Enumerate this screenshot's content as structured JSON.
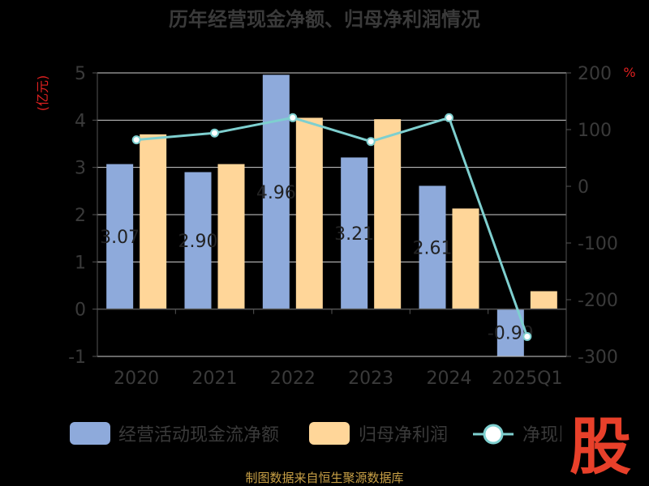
{
  "chart_data": {
    "type": "bar+line",
    "title": "历年经营现金净额、归母净利润情况",
    "categories": [
      "2020",
      "2021",
      "2022",
      "2023",
      "2024",
      "2025Q1"
    ],
    "y_left": {
      "label": "(亿元)",
      "ticks": [
        "5",
        "4",
        "3",
        "2",
        "1",
        "0",
        "-1"
      ],
      "range": [
        -1,
        5
      ]
    },
    "y_right": {
      "label": "%",
      "ticks": [
        "200",
        "100",
        "0",
        "-100",
        "-200",
        "-300"
      ],
      "range": [
        -300,
        200
      ]
    },
    "series": [
      {
        "name": "经营活动现金流净额",
        "type": "bar",
        "axis": "left",
        "color": "#8eaadb",
        "values": [
          3.07,
          2.9,
          4.96,
          3.21,
          2.61,
          -0.99
        ],
        "labels": [
          "3.07",
          "2.90",
          "4.96",
          "3.21",
          "2.61",
          "-0.99"
        ]
      },
      {
        "name": "归母净利润",
        "type": "bar",
        "axis": "left",
        "color": "#ffd699",
        "values": [
          3.7,
          3.07,
          4.05,
          4.02,
          2.13,
          0.38
        ]
      },
      {
        "name": "净现比",
        "type": "line",
        "axis": "right",
        "color": "#7ecfcf",
        "values": [
          82,
          94,
          121,
          79,
          121,
          -265
        ]
      }
    ],
    "grid": true,
    "legend_position": "bottom"
  },
  "legend": [
    "经营活动现金流净额",
    "归母净利润",
    "净现比"
  ],
  "source": "制图数据来自恒生聚源数据库",
  "logo": "股"
}
